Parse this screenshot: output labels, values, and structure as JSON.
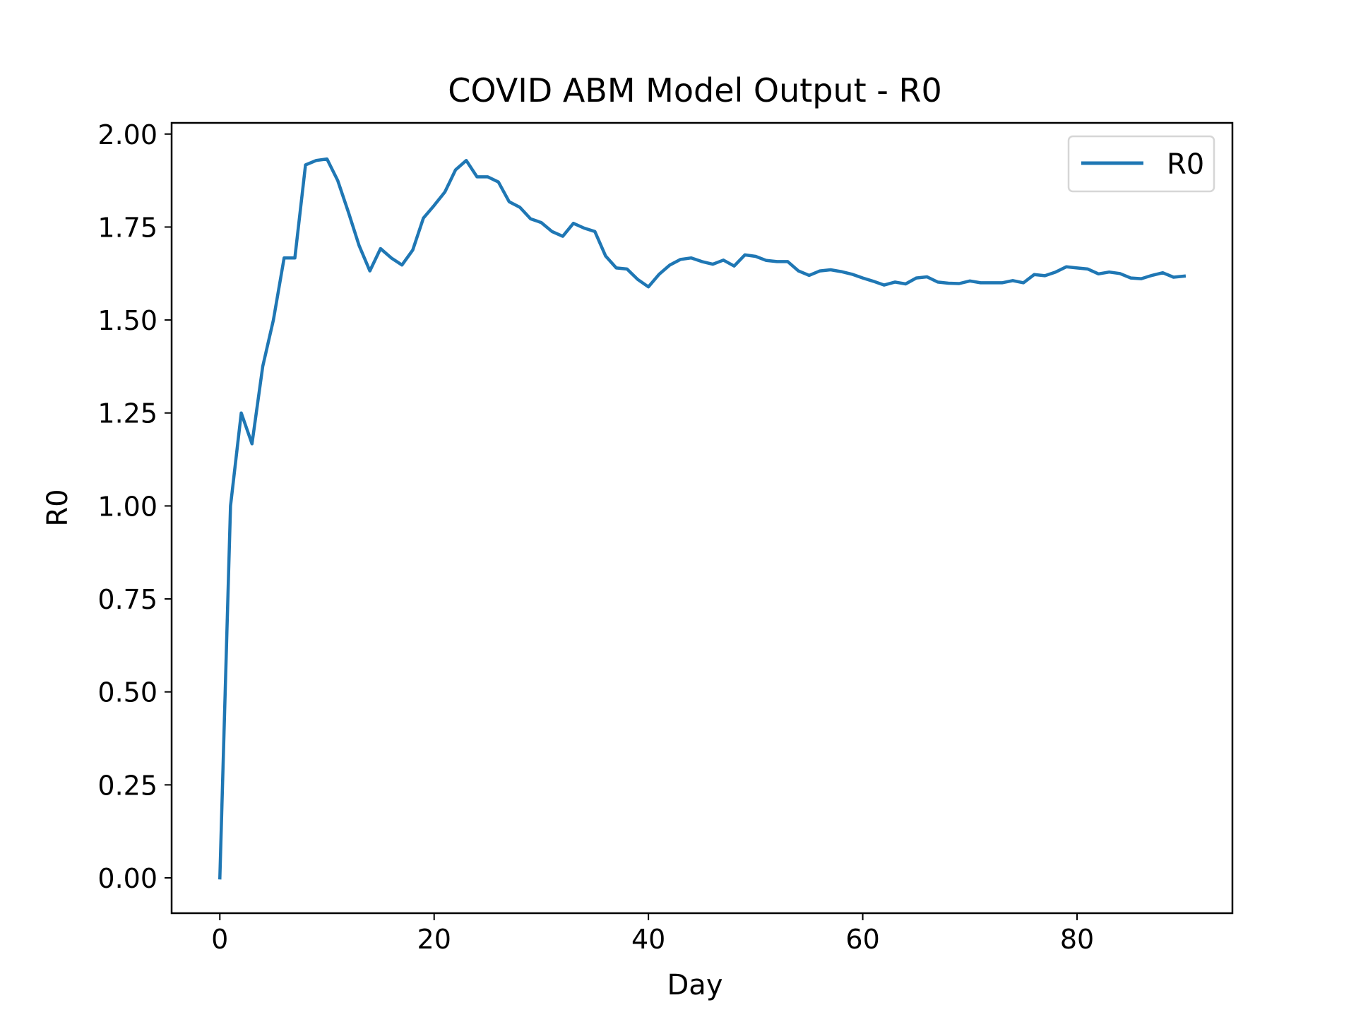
{
  "chart_data": {
    "type": "line",
    "title": "COVID ABM Model Output - R0",
    "xlabel": "Day",
    "ylabel": "R0",
    "xlim": [
      -4.5,
      94.5
    ],
    "ylim": [
      -0.095,
      2.03
    ],
    "xticks": [
      0,
      20,
      40,
      60,
      80
    ],
    "xtick_labels": [
      "0",
      "20",
      "40",
      "60",
      "80"
    ],
    "yticks": [
      0,
      0.25,
      0.5,
      0.75,
      1.0,
      1.25,
      1.5,
      1.75,
      2.0
    ],
    "ytick_labels": [
      "0.00",
      "0.25",
      "0.50",
      "0.75",
      "1.00",
      "1.25",
      "1.50",
      "1.75",
      "2.00"
    ],
    "grid": false,
    "legend": {
      "position": "upper right",
      "entries": [
        "R0"
      ]
    },
    "colors": {
      "series": "#1f77b4",
      "axes": "#000000",
      "legend_border": "#cccccc"
    },
    "series": [
      {
        "name": "R0",
        "x": [
          0,
          1,
          2,
          3,
          4,
          5,
          6,
          7,
          8,
          9,
          10,
          11,
          12,
          13,
          14,
          15,
          16,
          17,
          18,
          19,
          20,
          21,
          22,
          23,
          24,
          25,
          26,
          27,
          28,
          29,
          30,
          31,
          32,
          33,
          34,
          35,
          36,
          37,
          38,
          39,
          40,
          41,
          42,
          43,
          44,
          45,
          46,
          47,
          48,
          49,
          50,
          51,
          52,
          53,
          54,
          55,
          56,
          57,
          58,
          59,
          60,
          61,
          62,
          63,
          64,
          65,
          66,
          67,
          68,
          69,
          70,
          71,
          72,
          73,
          74,
          75,
          76,
          77,
          78,
          79,
          80,
          81,
          82,
          83,
          84,
          85,
          86,
          87,
          88,
          89,
          90
        ],
        "values": [
          0.0,
          1.0,
          1.25,
          1.167,
          1.375,
          1.5,
          1.667,
          1.667,
          1.917,
          1.929,
          1.933,
          1.875,
          1.79,
          1.7,
          1.632,
          1.692,
          1.667,
          1.648,
          1.688,
          1.774,
          1.808,
          1.844,
          1.904,
          1.929,
          1.885,
          1.885,
          1.871,
          1.818,
          1.803,
          1.772,
          1.762,
          1.738,
          1.725,
          1.76,
          1.747,
          1.738,
          1.672,
          1.64,
          1.637,
          1.609,
          1.589,
          1.623,
          1.648,
          1.663,
          1.667,
          1.657,
          1.65,
          1.661,
          1.645,
          1.675,
          1.671,
          1.66,
          1.657,
          1.657,
          1.632,
          1.62,
          1.632,
          1.635,
          1.63,
          1.623,
          1.613,
          1.604,
          1.594,
          1.602,
          1.597,
          1.613,
          1.616,
          1.602,
          1.599,
          1.598,
          1.605,
          1.6,
          1.6,
          1.6,
          1.606,
          1.6,
          1.622,
          1.619,
          1.629,
          1.643,
          1.64,
          1.637,
          1.624,
          1.629,
          1.625,
          1.613,
          1.611,
          1.62,
          1.627,
          1.615,
          1.618
        ]
      }
    ]
  }
}
